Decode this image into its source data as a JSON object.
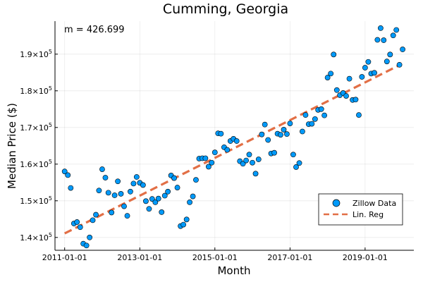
{
  "chart_data": {
    "type": "scatter",
    "title": "Cumming, Georgia",
    "xlabel": "Month",
    "ylabel": "Median Price ($)",
    "annotation": "m = 426.699",
    "x_ticks": [
      {
        "date": "2011-01-01",
        "label": "2011-01-01"
      },
      {
        "date": "2013-01-01",
        "label": "2013-01-01"
      },
      {
        "date": "2015-01-01",
        "label": "2015-01-01"
      },
      {
        "date": "2017-01-01",
        "label": "2017-01-01"
      },
      {
        "date": "2019-01-01",
        "label": "2019-01-01"
      }
    ],
    "y_ticks": [
      {
        "value": 140000,
        "mantissa": "1.4",
        "exponent": "5"
      },
      {
        "value": 150000,
        "mantissa": "1.5",
        "exponent": "5"
      },
      {
        "value": 160000,
        "mantissa": "1.6",
        "exponent": "5"
      },
      {
        "value": 170000,
        "mantissa": "1.7",
        "exponent": "5"
      },
      {
        "value": 180000,
        "mantissa": "1.8",
        "exponent": "5"
      },
      {
        "value": 190000,
        "mantissa": "1.9",
        "exponent": "5"
      }
    ],
    "xlim": [
      "2010-09-29",
      "2020-04-19"
    ],
    "ylim": [
      136500,
      199000
    ],
    "grid": true,
    "legend_position": "bottom-right",
    "colors": {
      "scatter": "#009AFA",
      "line": "#E26F46"
    },
    "series": [
      {
        "name": "Zillow Data",
        "kind": "scatter",
        "points": [
          {
            "x": "2011-01-01",
            "y": 158000
          },
          {
            "x": "2011-02-01",
            "y": 157000
          },
          {
            "x": "2011-03-01",
            "y": 153500
          },
          {
            "x": "2011-04-01",
            "y": 143800
          },
          {
            "x": "2011-05-01",
            "y": 144200
          },
          {
            "x": "2011-06-01",
            "y": 142800
          },
          {
            "x": "2011-07-01",
            "y": 138300
          },
          {
            "x": "2011-08-01",
            "y": 137800
          },
          {
            "x": "2011-09-01",
            "y": 140000
          },
          {
            "x": "2011-10-01",
            "y": 144700
          },
          {
            "x": "2011-11-01",
            "y": 146200
          },
          {
            "x": "2011-12-01",
            "y": 152800
          },
          {
            "x": "2012-01-01",
            "y": 158600
          },
          {
            "x": "2012-02-01",
            "y": 156300
          },
          {
            "x": "2012-03-01",
            "y": 152200
          },
          {
            "x": "2012-04-01",
            "y": 146800
          },
          {
            "x": "2012-05-01",
            "y": 151500
          },
          {
            "x": "2012-06-01",
            "y": 155300
          },
          {
            "x": "2012-07-01",
            "y": 151900
          },
          {
            "x": "2012-08-01",
            "y": 148500
          },
          {
            "x": "2012-09-01",
            "y": 145900
          },
          {
            "x": "2012-10-01",
            "y": 152500
          },
          {
            "x": "2012-11-01",
            "y": 154700
          },
          {
            "x": "2012-12-01",
            "y": 156500
          },
          {
            "x": "2013-01-01",
            "y": 154900
          },
          {
            "x": "2013-02-01",
            "y": 154300
          },
          {
            "x": "2013-03-01",
            "y": 149900
          },
          {
            "x": "2013-04-01",
            "y": 147800
          },
          {
            "x": "2013-05-01",
            "y": 150500
          },
          {
            "x": "2013-06-01",
            "y": 149600
          },
          {
            "x": "2013-07-01",
            "y": 150600
          },
          {
            "x": "2013-08-01",
            "y": 146900
          },
          {
            "x": "2013-09-01",
            "y": 151400
          },
          {
            "x": "2013-10-01",
            "y": 152500
          },
          {
            "x": "2013-11-01",
            "y": 156900
          },
          {
            "x": "2013-12-01",
            "y": 156200
          },
          {
            "x": "2014-01-01",
            "y": 153600
          },
          {
            "x": "2014-02-01",
            "y": 143100
          },
          {
            "x": "2014-03-01",
            "y": 143500
          },
          {
            "x": "2014-04-01",
            "y": 144900
          },
          {
            "x": "2014-05-01",
            "y": 149600
          },
          {
            "x": "2014-06-01",
            "y": 151200
          },
          {
            "x": "2014-07-01",
            "y": 155700
          },
          {
            "x": "2014-08-01",
            "y": 161500
          },
          {
            "x": "2014-09-01",
            "y": 161600
          },
          {
            "x": "2014-10-01",
            "y": 161600
          },
          {
            "x": "2014-11-01",
            "y": 159300
          },
          {
            "x": "2014-12-01",
            "y": 160400
          },
          {
            "x": "2015-01-01",
            "y": 163200
          },
          {
            "x": "2015-02-01",
            "y": 168400
          },
          {
            "x": "2015-03-01",
            "y": 168300
          },
          {
            "x": "2015-04-01",
            "y": 164600
          },
          {
            "x": "2015-05-01",
            "y": 163900
          },
          {
            "x": "2015-06-01",
            "y": 166300
          },
          {
            "x": "2015-07-01",
            "y": 166900
          },
          {
            "x": "2015-08-01",
            "y": 166300
          },
          {
            "x": "2015-09-01",
            "y": 160800
          },
          {
            "x": "2015-10-01",
            "y": 160100
          },
          {
            "x": "2015-11-01",
            "y": 161000
          },
          {
            "x": "2015-12-01",
            "y": 162600
          },
          {
            "x": "2016-01-01",
            "y": 160400
          },
          {
            "x": "2016-02-01",
            "y": 157400
          },
          {
            "x": "2016-03-01",
            "y": 161300
          },
          {
            "x": "2016-04-01",
            "y": 168100
          },
          {
            "x": "2016-05-01",
            "y": 170800
          },
          {
            "x": "2016-06-01",
            "y": 166600
          },
          {
            "x": "2016-07-01",
            "y": 162900
          },
          {
            "x": "2016-08-01",
            "y": 163100
          },
          {
            "x": "2016-09-01",
            "y": 168300
          },
          {
            "x": "2016-10-01",
            "y": 168000
          },
          {
            "x": "2016-11-01",
            "y": 169400
          },
          {
            "x": "2016-12-01",
            "y": 168200
          },
          {
            "x": "2017-01-01",
            "y": 171100
          },
          {
            "x": "2017-02-01",
            "y": 162600
          },
          {
            "x": "2017-03-01",
            "y": 159200
          },
          {
            "x": "2017-04-01",
            "y": 160300
          },
          {
            "x": "2017-05-01",
            "y": 168900
          },
          {
            "x": "2017-06-01",
            "y": 173400
          },
          {
            "x": "2017-07-01",
            "y": 170900
          },
          {
            "x": "2017-08-01",
            "y": 171000
          },
          {
            "x": "2017-09-01",
            "y": 172300
          },
          {
            "x": "2017-10-01",
            "y": 174800
          },
          {
            "x": "2017-11-01",
            "y": 175000
          },
          {
            "x": "2017-12-01",
            "y": 173300
          },
          {
            "x": "2018-01-01",
            "y": 183600
          },
          {
            "x": "2018-02-01",
            "y": 184700
          },
          {
            "x": "2018-03-01",
            "y": 189900
          },
          {
            "x": "2018-04-01",
            "y": 180200
          },
          {
            "x": "2018-05-01",
            "y": 178800
          },
          {
            "x": "2018-06-01",
            "y": 179400
          },
          {
            "x": "2018-07-01",
            "y": 178600
          },
          {
            "x": "2018-08-01",
            "y": 183300
          },
          {
            "x": "2018-09-01",
            "y": 177500
          },
          {
            "x": "2018-10-01",
            "y": 177600
          },
          {
            "x": "2018-11-01",
            "y": 173400
          },
          {
            "x": "2018-12-01",
            "y": 183800
          },
          {
            "x": "2019-01-01",
            "y": 186300
          },
          {
            "x": "2019-02-01",
            "y": 187900
          },
          {
            "x": "2019-03-01",
            "y": 184700
          },
          {
            "x": "2019-04-01",
            "y": 184900
          },
          {
            "x": "2019-05-01",
            "y": 193900
          },
          {
            "x": "2019-06-01",
            "y": 197100
          },
          {
            "x": "2019-07-01",
            "y": 193800
          },
          {
            "x": "2019-08-01",
            "y": 188000
          },
          {
            "x": "2019-09-01",
            "y": 189900
          },
          {
            "x": "2019-10-01",
            "y": 195100
          },
          {
            "x": "2019-11-01",
            "y": 196600
          },
          {
            "x": "2019-12-01",
            "y": 187100
          },
          {
            "x": "2020-01-01",
            "y": 191300
          }
        ]
      },
      {
        "name": "Lin. Reg",
        "kind": "line",
        "points": [
          {
            "x": "2011-01-01",
            "y": 141100
          },
          {
            "x": "2019-12-01",
            "y": 187000
          }
        ]
      }
    ]
  }
}
